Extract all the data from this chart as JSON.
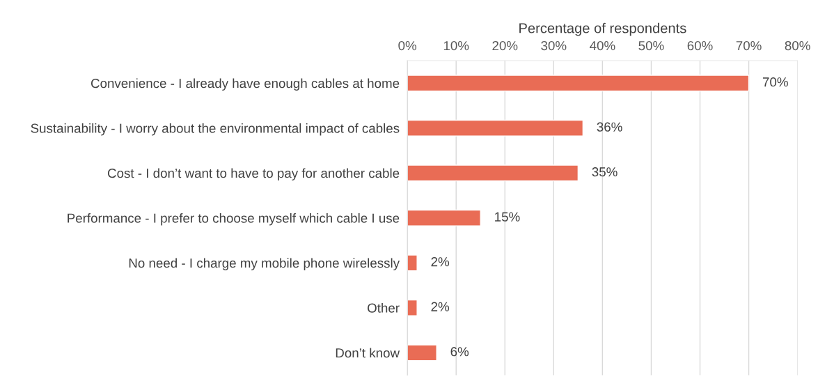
{
  "chart_data": {
    "type": "bar",
    "orientation": "horizontal",
    "xlabel": "Percentage of respondents",
    "categories": [
      "Convenience - I already have enough cables at home",
      "Sustainability - I worry about the environmental impact of cables",
      "Cost - I don’t want to have to pay for another cable",
      "Performance - I prefer to choose myself which cable I use",
      "No need - I charge my mobile phone wirelessly",
      "Other",
      "Don’t know"
    ],
    "values": [
      70,
      36,
      35,
      15,
      2,
      2,
      6
    ],
    "value_labels": [
      "70%",
      "36%",
      "35%",
      "15%",
      "2%",
      "2%",
      "6%"
    ],
    "color": "#e96c55",
    "xlim": [
      0,
      80
    ],
    "xticks": [
      {
        "value": 0,
        "label": "0%"
      },
      {
        "value": 10,
        "label": "10%"
      },
      {
        "value": 20,
        "label": "20%"
      },
      {
        "value": 30,
        "label": "30%"
      },
      {
        "value": 40,
        "label": "40%"
      },
      {
        "value": 50,
        "label": "50%"
      },
      {
        "value": 60,
        "label": "60%"
      },
      {
        "value": 70,
        "label": "70%"
      },
      {
        "value": 80,
        "label": "80%"
      }
    ],
    "grid": "x"
  }
}
